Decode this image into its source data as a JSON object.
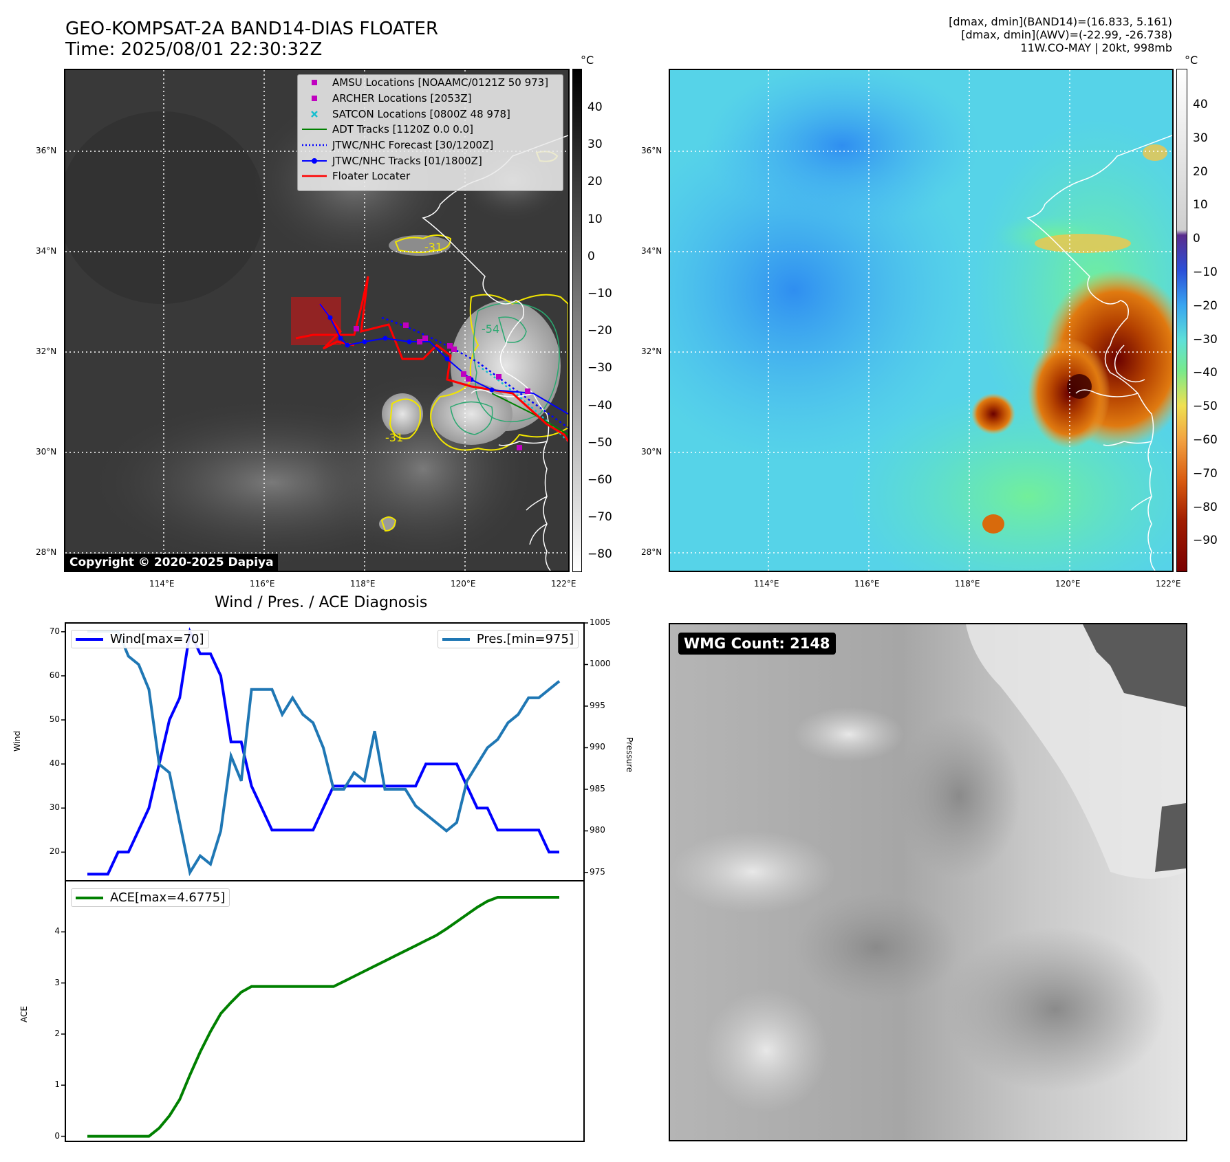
{
  "header": {
    "title_line1": "GEO-KOMPSAT-2A BAND14-DIAS FLOATER",
    "title_line2": "Time: 2025/08/01 22:30:32Z",
    "info_line1": "[dmax, dmin](BAND14)=(16.833, 5.161)",
    "info_line2": "[dmax, dmin](AWV)=(-22.99, -26.738)",
    "info_line3": "11W.CO-MAY | 20kt, 998mb"
  },
  "maps": {
    "lat_labels": [
      "36°N",
      "34°N",
      "32°N",
      "30°N",
      "28°N"
    ],
    "lon_labels": [
      "114°E",
      "116°E",
      "118°E",
      "120°E",
      "122°E"
    ],
    "copyright": "Copyright © 2020-2025 Dapiya",
    "contour_labels": [
      "-31",
      "-54",
      "-31"
    ],
    "legend": [
      {
        "label": "AMSU Locations [NOAAMC/0121Z 50 973]",
        "color": "#c000c0",
        "symbol": "square"
      },
      {
        "label": "ARCHER Locations [2053Z]",
        "color": "#c000c0",
        "symbol": "square"
      },
      {
        "label": "SATCON Locations [0800Z 48 978]",
        "color": "#17becf",
        "symbol": "x"
      },
      {
        "label": "ADT Tracks [1120Z 0.0 0.0]",
        "color": "#008000",
        "symbol": "line"
      },
      {
        "label": "JTWC/NHC Forecast [30/1200Z]",
        "color": "#0000ff",
        "symbol": "dotted"
      },
      {
        "label": "JTWC/NHC Tracks [01/1800Z]",
        "color": "#0000ff",
        "symbol": "line-dot"
      },
      {
        "label": "Floater Locater",
        "color": "#ff0000",
        "symbol": "line"
      }
    ],
    "ir_colorbar": {
      "unit": "°C",
      "ticks": [
        "40",
        "30",
        "20",
        "10",
        "0",
        "−10",
        "−20",
        "−30",
        "−40",
        "−50",
        "−60",
        "−70",
        "−80"
      ]
    },
    "wv_colorbar": {
      "unit": "°C",
      "ticks": [
        "40",
        "30",
        "20",
        "10",
        "0",
        "−10",
        "−20",
        "−30",
        "−40",
        "−50",
        "−60",
        "−70",
        "−80",
        "−90"
      ]
    }
  },
  "wmg": {
    "label": "WMG Count: 2148"
  },
  "chart_data": [
    {
      "type": "line",
      "title": "Wind / Pres. / ACE Diagnosis",
      "ylabel": "Wind",
      "ylim": [
        13.5,
        72
      ],
      "yticks": [
        20,
        30,
        40,
        50,
        60,
        70
      ],
      "series": [
        {
          "name": "Wind[max=70]",
          "color": "#0000ff",
          "values": [
            15,
            15,
            15,
            20,
            20,
            25,
            30,
            40,
            50,
            55,
            70,
            65,
            65,
            60,
            45,
            45,
            35,
            30,
            25,
            25,
            25,
            25,
            25,
            30,
            35,
            35,
            35,
            35,
            35,
            35,
            35,
            35,
            35,
            40,
            40,
            40,
            40,
            35,
            30,
            30,
            25,
            25,
            25,
            25,
            25,
            20,
            20
          ]
        }
      ]
    },
    {
      "type": "line",
      "ylabel": "Pressure",
      "ylim": [
        974,
        1005
      ],
      "yticks": [
        975,
        980,
        985,
        990,
        995,
        1000,
        1005
      ],
      "series": [
        {
          "name": "Pres.[min=975]",
          "color": "#1f77b4",
          "values": [
            1004,
            1004,
            1004,
            1004,
            1001,
            1000,
            997,
            988,
            987,
            981,
            975,
            977,
            976,
            980,
            989,
            986,
            997,
            997,
            997,
            994,
            996,
            994,
            993,
            990,
            985,
            985,
            987,
            986,
            992,
            985,
            985,
            985,
            983,
            982,
            981,
            980,
            981,
            986,
            988,
            990,
            991,
            993,
            994,
            996,
            996,
            997,
            998
          ]
        }
      ]
    },
    {
      "type": "line",
      "ylabel": "ACE",
      "ylim": [
        -0.1,
        5.0
      ],
      "yticks": [
        0,
        1,
        2,
        3,
        4
      ],
      "series": [
        {
          "name": "ACE[max=4.6775]",
          "color": "#008000",
          "values": [
            0,
            0,
            0,
            0,
            0,
            0,
            0,
            0.16,
            0.4,
            0.72,
            1.2,
            1.65,
            2.05,
            2.4,
            2.62,
            2.82,
            2.93,
            2.93,
            2.93,
            2.93,
            2.93,
            2.93,
            2.93,
            2.93,
            2.93,
            3.03,
            3.13,
            3.23,
            3.33,
            3.43,
            3.53,
            3.63,
            3.73,
            3.83,
            3.93,
            4.06,
            4.2,
            4.34,
            4.48,
            4.6,
            4.6775,
            4.6775,
            4.6775,
            4.6775,
            4.6775,
            4.6775,
            4.6775
          ]
        }
      ]
    }
  ]
}
